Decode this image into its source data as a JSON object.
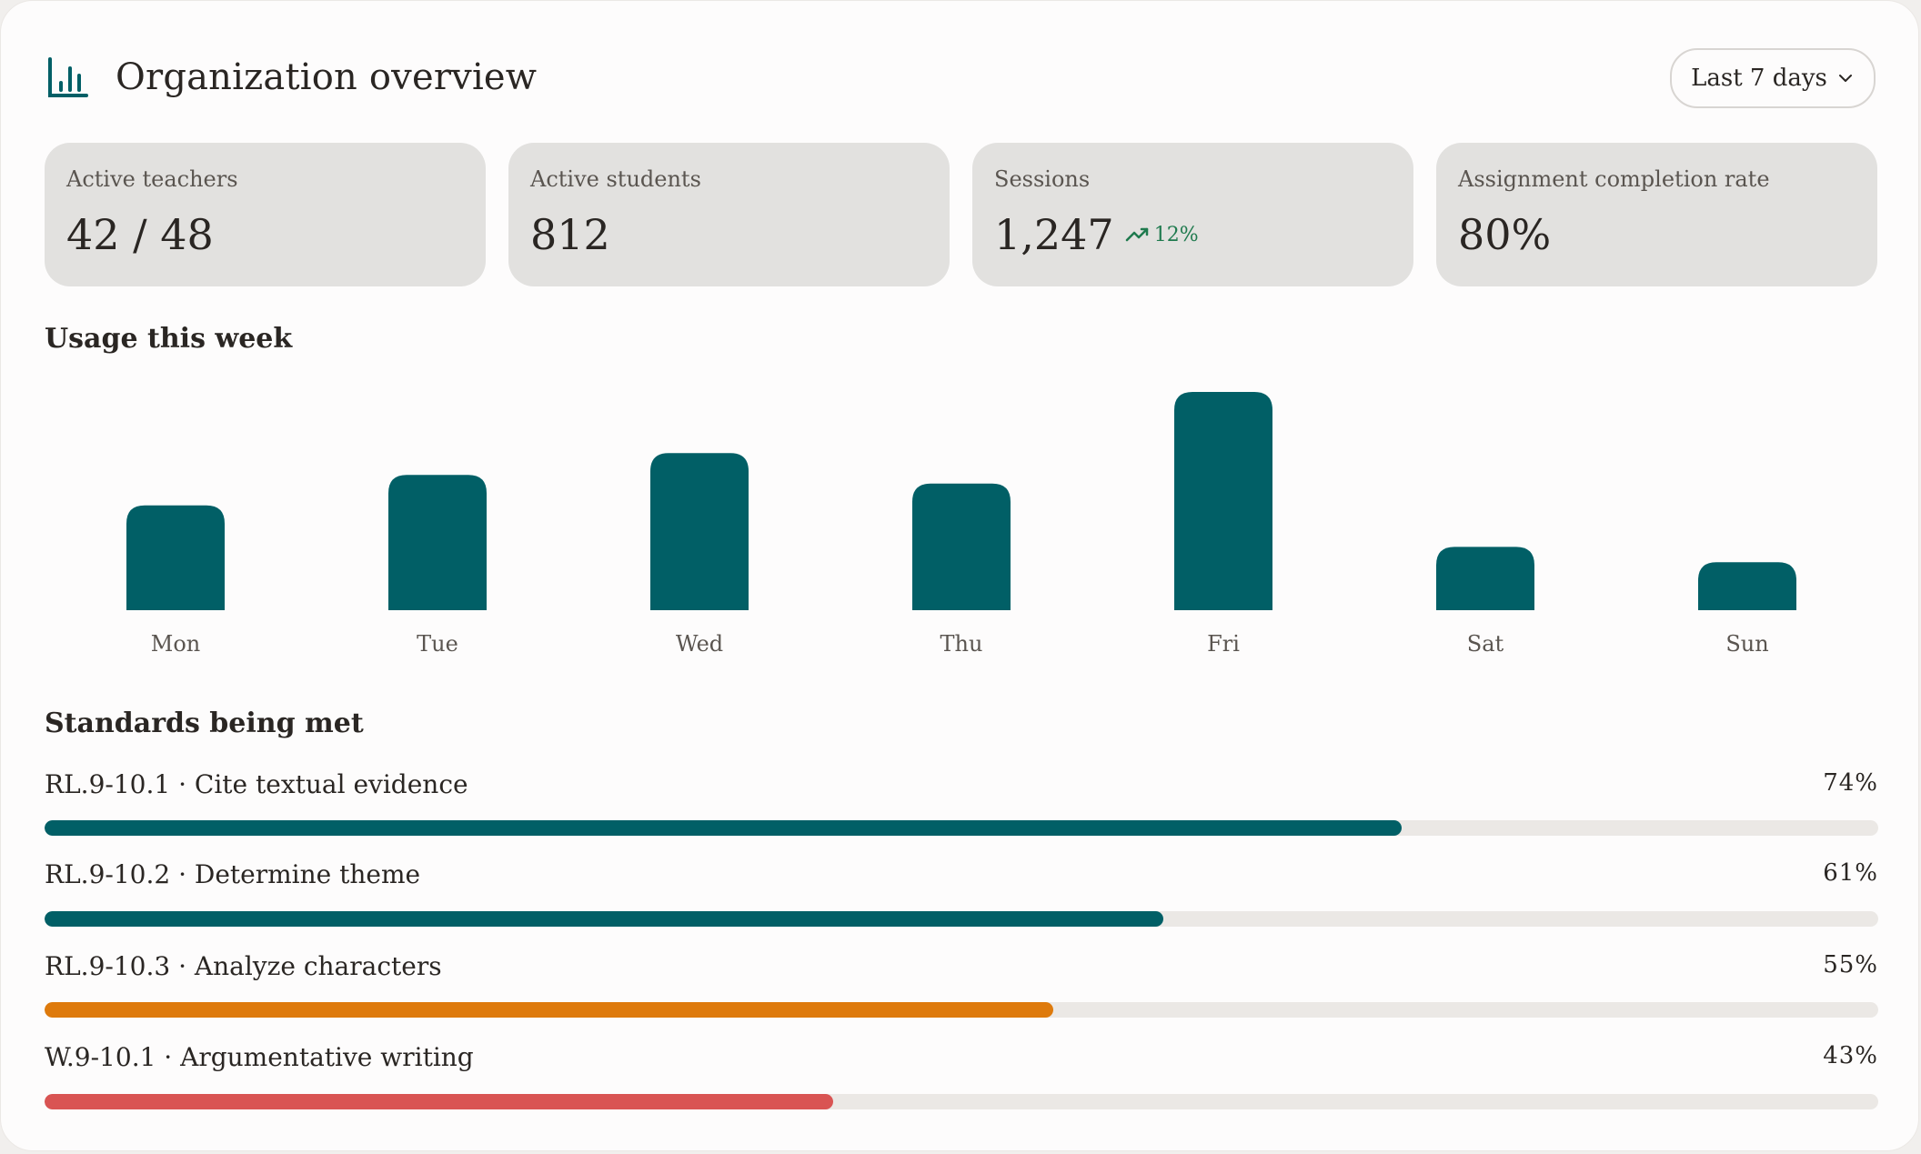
{
  "header": {
    "title": "Organization overview",
    "logo_icon": "bar-chart-icon",
    "range_label": "Last 7 days",
    "range_icon": "chevron-down-icon"
  },
  "stats": [
    {
      "label": "Active teachers",
      "value": "42 / 48"
    },
    {
      "label": "Active students",
      "value": "812"
    },
    {
      "label": "Sessions",
      "value": "1,247",
      "trend": "12%",
      "trend_icon": "trending-up-icon"
    },
    {
      "label": "Assignment completion rate",
      "value": "80%"
    }
  ],
  "usage": {
    "title": "Usage this week"
  },
  "chart_data": {
    "type": "bar",
    "categories": [
      "Mon",
      "Tue",
      "Wed",
      "Thu",
      "Fri",
      "Sat",
      "Sun"
    ],
    "values": [
      48,
      62,
      72,
      58,
      100,
      29,
      22
    ],
    "ylim": [
      0,
      100
    ],
    "grid": false,
    "color": "#015f66"
  },
  "standards": {
    "title": "Standards being met",
    "items": [
      {
        "label": "RL.9-10.1 · Cite textual evidence",
        "percent": "74%",
        "value": 74,
        "color": "#015f66"
      },
      {
        "label": "RL.9-10.2 · Determine theme",
        "percent": "61%",
        "value": 61,
        "color": "#015f66"
      },
      {
        "label": "RL.9-10.3 · Analyze characters",
        "percent": "55%",
        "value": 55,
        "color": "#de7a0c"
      },
      {
        "label": "W.9-10.1 · Argumentative writing",
        "percent": "43%",
        "value": 43,
        "color": "#d95453"
      }
    ]
  },
  "colors": {
    "accent": "#015f66",
    "positive": "#1f7a4e",
    "warning": "#de7a0c",
    "danger": "#d95453",
    "track": "#ebe8e5",
    "stat_card": "#e2e1df"
  }
}
